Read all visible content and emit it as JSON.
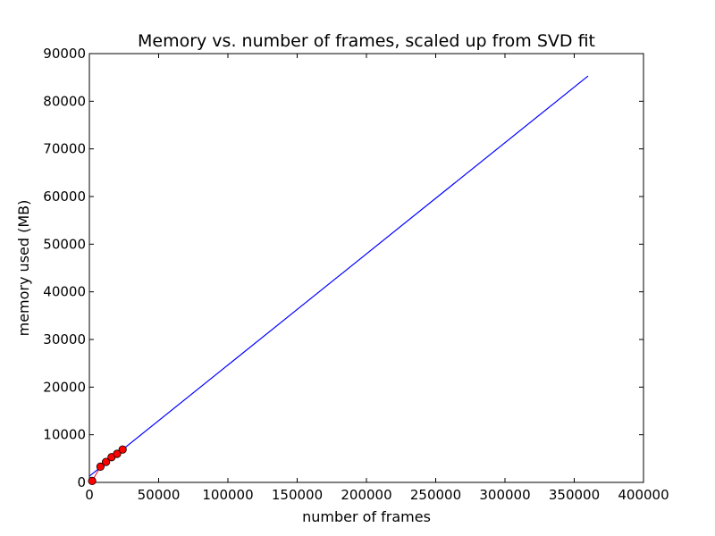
{
  "chart_data": {
    "type": "line",
    "title": "Memory vs. number of frames, scaled up from SVD fit",
    "xlabel": "number of frames",
    "ylabel": "memory used (MB)",
    "xlim": [
      0,
      400000
    ],
    "ylim": [
      0,
      90000
    ],
    "x_ticks": [
      "0",
      "50000",
      "100000",
      "150000",
      "200000",
      "250000",
      "300000",
      "350000",
      "400000"
    ],
    "y_ticks": [
      "0",
      "10000",
      "20000",
      "30000",
      "40000",
      "50000",
      "60000",
      "70000",
      "80000",
      "90000"
    ],
    "grid": false,
    "legend": "none",
    "series": [
      {
        "kind": "fit-line",
        "color": "#0000ff",
        "x": [
          0,
          360000
        ],
        "y": [
          1300,
          85300
        ]
      },
      {
        "kind": "measured-points",
        "color": "#ff0000",
        "marker": "circle",
        "x": [
          2000,
          8000,
          12000,
          16000,
          20000,
          24000
        ],
        "y": [
          300,
          3300,
          4300,
          5300,
          6000,
          6900
        ]
      }
    ]
  }
}
